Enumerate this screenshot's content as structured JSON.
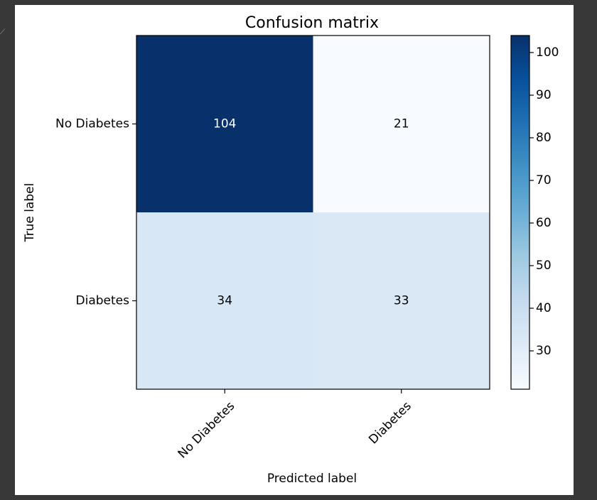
{
  "chart_data": {
    "type": "heatmap",
    "title": "Confusion matrix",
    "xlabel": "Predicted label",
    "ylabel": "True label",
    "x_categories": [
      "No Diabetes",
      "Diabetes"
    ],
    "y_categories": [
      "No Diabetes",
      "Diabetes"
    ],
    "values": [
      [
        104,
        21
      ],
      [
        34,
        33
      ]
    ],
    "colormap": "Blues",
    "color_min": 21,
    "color_max": 104,
    "colorbar_ticks": [
      30,
      40,
      50,
      60,
      70,
      80,
      90,
      100
    ],
    "cell_text_colors": {
      "dark": "#ffffff",
      "light": "#000000"
    },
    "grid": false
  }
}
